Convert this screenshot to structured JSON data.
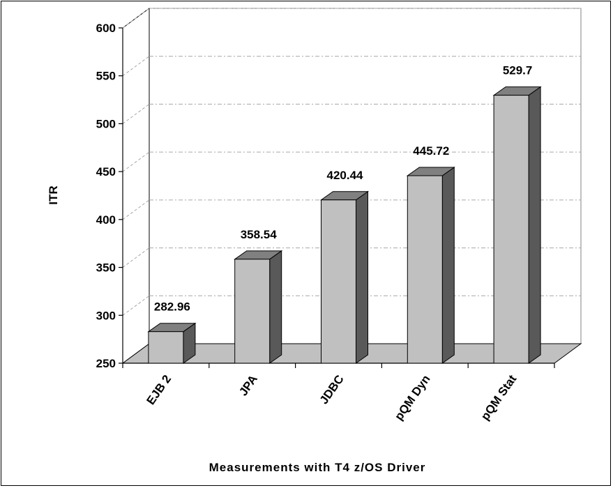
{
  "chart_data": {
    "type": "bar",
    "style": "3d-column",
    "title": "",
    "xlabel": "Measurements with T4 z/OS Driver",
    "ylabel": "ITR",
    "categories": [
      "EJB 2",
      "JPA",
      "JDBC",
      "pQM Dyn",
      "pQM Stat"
    ],
    "values": [
      282.96,
      358.54,
      420.44,
      445.72,
      529.7
    ],
    "data_labels": [
      "282.96",
      "358.54",
      "420.44",
      "445.72",
      "529.7"
    ],
    "ylim": [
      250,
      600
    ],
    "yticks": [
      "250",
      "300",
      "350",
      "400",
      "450",
      "500",
      "550",
      "600"
    ],
    "grid": true,
    "legend": "none",
    "colors": {
      "bar_front": "#c0c0c0",
      "bar_top": "#808080",
      "bar_side": "#595959",
      "floor": "#c0c0c0",
      "gridline": "#a6a6a6"
    }
  }
}
